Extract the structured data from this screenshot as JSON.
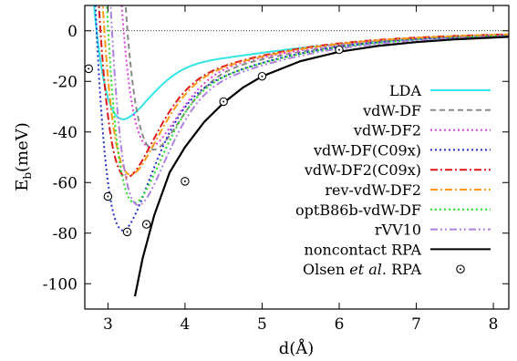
{
  "chart_data": {
    "type": "line",
    "xlabel": "d(Å)",
    "ylabel_main": "E",
    "ylabel_sub": "b",
    "ylabel_unit": "(meV)",
    "xlim": [
      2.7,
      8.2
    ],
    "ylim": [
      -110,
      10
    ],
    "xticks": [
      3,
      4,
      5,
      6,
      7,
      8
    ],
    "yticks": [
      0,
      -20,
      -40,
      -60,
      -80,
      -100
    ],
    "zero_line": true,
    "legend_position": "right",
    "series": [
      {
        "name": "LDA",
        "color": "#33e5e5",
        "dash": "solid",
        "curve": {
          "d0": 3.2,
          "e0": -35,
          "c6": 9.5,
          "rep": 10,
          "n": 3
        }
      },
      {
        "name": "vdW-DF",
        "color": "#888888",
        "dash": "dashed",
        "curve": {
          "d0": 3.6,
          "e0": -47,
          "c6": 22,
          "rep": 10,
          "n": 4
        }
      },
      {
        "name": "vdW-DF2",
        "color": "#e040e0",
        "dash": "dotted",
        "curve": {
          "d0": 3.55,
          "e0": -46,
          "c6": 20,
          "rep": 10,
          "n": 4
        }
      },
      {
        "name": "vdW-DF(C09x)",
        "color": "#2030cc",
        "dash": "dotted",
        "curve": {
          "d0": 3.2,
          "e0": -79,
          "c6": 17,
          "rep": 10,
          "n": 4
        }
      },
      {
        "name": "vdW-DF2(C09x)",
        "color": "#dd1a1a",
        "dash": "dashdot",
        "curve": {
          "d0": 3.25,
          "e0": -58,
          "c6": 14,
          "rep": 10,
          "n": 4
        }
      },
      {
        "name": "rev-vdW-DF2",
        "color": "#ff9910",
        "dash": "dashdot",
        "curve": {
          "d0": 3.3,
          "e0": -57,
          "c6": 14,
          "rep": 10,
          "n": 4
        }
      },
      {
        "name": "optB86b-vdW-DF",
        "color": "#22dd22",
        "dash": "dotted",
        "curve": {
          "d0": 3.35,
          "e0": -68,
          "c6": 17,
          "rep": 10,
          "n": 4
        }
      },
      {
        "name": "rVV10",
        "color": "#b080e0",
        "dash": "dashdotdot",
        "curve": {
          "d0": 3.4,
          "e0": -69,
          "c6": 17,
          "rep": 10,
          "n": 4
        }
      },
      {
        "name": "noncontact RPA",
        "color": "#000000",
        "dash": "solid",
        "points": [
          [
            3.35,
            -105
          ],
          [
            3.45,
            -90
          ],
          [
            3.6,
            -73
          ],
          [
            3.8,
            -56
          ],
          [
            4.0,
            -46
          ],
          [
            4.25,
            -36
          ],
          [
            4.5,
            -28.5
          ],
          [
            4.75,
            -22.5
          ],
          [
            5.0,
            -18
          ],
          [
            5.5,
            -12
          ],
          [
            6.0,
            -8.3
          ],
          [
            6.5,
            -6.0
          ],
          [
            7.0,
            -4.5
          ],
          [
            7.5,
            -3.4
          ],
          [
            8.2,
            -2.4
          ]
        ]
      },
      {
        "name": "Olsen et al. RPA",
        "color": "#000000",
        "marker": "circle-dot",
        "points": [
          [
            2.75,
            -15
          ],
          [
            3.0,
            -65.5
          ],
          [
            3.25,
            -79.5
          ],
          [
            3.5,
            -76.5
          ],
          [
            4.0,
            -59.5
          ],
          [
            4.5,
            -28
          ],
          [
            5.0,
            -18
          ],
          [
            6.0,
            -7.5
          ]
        ]
      }
    ]
  }
}
